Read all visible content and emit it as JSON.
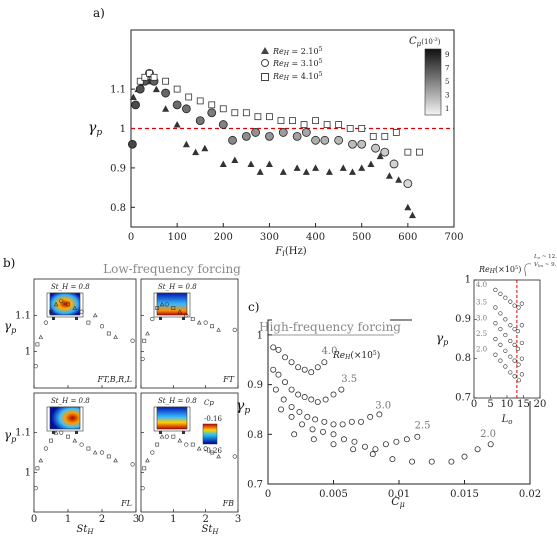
{
  "chart_data": [
    {
      "id": "a",
      "panel_label": "a)",
      "type": "scatter",
      "xlabel": "F_i(Hz)",
      "ylabel": "γ_p",
      "xlim": [
        0,
        700
      ],
      "ylim": [
        0.75,
        1.25
      ],
      "xticks": [
        0,
        100,
        200,
        300,
        400,
        500,
        600,
        700
      ],
      "yticks": [
        0.8,
        0.9,
        1,
        1.1
      ],
      "reference_line": {
        "y": 1,
        "color": "#e00000",
        "style": "dashed"
      },
      "colorbar": {
        "label": "C_μ (10^-3)",
        "ticks": [
          "9",
          "7",
          "5",
          "3",
          "1"
        ]
      },
      "series": [
        {
          "name": "Re_H = 2.10^5",
          "marker": "triangle",
          "x": [
            5,
            15,
            22,
            30,
            40,
            55,
            75,
            100,
            120,
            140,
            160,
            200,
            225,
            260,
            280,
            300,
            330,
            360,
            380,
            400,
            430,
            460,
            480,
            500,
            520,
            540,
            560,
            580,
            600,
            610
          ],
          "y": [
            1.08,
            1.1,
            1.11,
            1.12,
            1.12,
            1.1,
            1.05,
            1.01,
            0.96,
            0.94,
            0.95,
            0.91,
            0.92,
            0.91,
            0.89,
            0.91,
            0.89,
            0.9,
            0.89,
            0.9,
            0.89,
            0.9,
            0.89,
            0.9,
            0.91,
            0.93,
            0.88,
            0.87,
            0.8,
            0.78
          ]
        },
        {
          "name": "Re_H = 3.10^5",
          "marker": "circle",
          "x": [
            3,
            10,
            20,
            30,
            40,
            50,
            75,
            100,
            120,
            150,
            175,
            200,
            220,
            250,
            270,
            300,
            330,
            360,
            380,
            400,
            420,
            450,
            480,
            500,
            530,
            550,
            570,
            600
          ],
          "y": [
            0.96,
            1.06,
            1.1,
            1.12,
            1.14,
            1.12,
            1.09,
            1.06,
            1.05,
            1.02,
            1.04,
            1.01,
            0.97,
            0.98,
            0.99,
            0.98,
            0.99,
            0.98,
            0.99,
            0.97,
            0.97,
            0.97,
            0.96,
            0.96,
            0.95,
            0.94,
            0.91,
            0.86
          ]
        },
        {
          "name": "Re_H = 4.10^5",
          "marker": "square",
          "x": [
            20,
            30,
            40,
            50,
            75,
            100,
            125,
            150,
            175,
            200,
            225,
            250,
            275,
            300,
            325,
            350,
            375,
            400,
            425,
            450,
            475,
            500,
            525,
            550,
            575,
            600,
            625
          ],
          "y": [
            1.12,
            1.13,
            1.14,
            1.13,
            1.12,
            1.1,
            1.08,
            1.07,
            1.06,
            1.05,
            1.04,
            1.04,
            1.03,
            1.03,
            1.02,
            1.02,
            1.01,
            1.02,
            1.01,
            1.01,
            1.0,
            1.0,
            0.98,
            0.98,
            0.99,
            0.94,
            0.94
          ]
        }
      ]
    },
    {
      "id": "b",
      "panel_label": "b)",
      "type": "scatter",
      "title": "Low-frequency forcing",
      "xlabel": "St_H",
      "ylabel": "γ_p",
      "xlim": [
        0,
        3
      ],
      "ylim": [
        0.9,
        1.2
      ],
      "xticks": [
        0,
        1,
        2,
        3
      ],
      "yticks": [
        1,
        1.1
      ],
      "inset_label": "St_H = 0.8",
      "colorbar": {
        "label": "C_p (mean)",
        "ticks": [
          "-0.16",
          "-0.26"
        ]
      },
      "subpanels": [
        {
          "label": "F_{T,B,R,L}",
          "x": [
            0.05,
            0.1,
            0.2,
            0.35,
            0.5,
            0.65,
            0.8,
            1.0,
            1.2,
            1.4,
            1.6,
            1.8,
            2.0,
            2.2,
            2.4,
            2.9
          ],
          "y": [
            0.96,
            1.02,
            1.04,
            1.08,
            1.11,
            1.13,
            1.14,
            1.13,
            1.12,
            1.11,
            1.08,
            1.1,
            1.07,
            1.05,
            1.04,
            1.03
          ]
        },
        {
          "label": "F_T",
          "x": [
            0.05,
            0.1,
            0.2,
            0.35,
            0.5,
            0.65,
            0.8,
            1.0,
            1.2,
            1.4,
            1.6,
            1.8,
            2.0,
            2.2,
            2.4,
            2.9
          ],
          "y": [
            0.98,
            1.03,
            1.05,
            1.09,
            1.12,
            1.13,
            1.13,
            1.12,
            1.11,
            1.1,
            1.09,
            1.08,
            1.08,
            1.07,
            1.06,
            1.06
          ]
        },
        {
          "label": "F_L",
          "x": [
            0.05,
            0.1,
            0.2,
            0.35,
            0.5,
            0.65,
            0.8,
            1.0,
            1.2,
            1.4,
            1.6,
            1.8,
            2.0,
            2.2,
            2.4,
            2.9
          ],
          "y": [
            0.96,
            1.01,
            1.03,
            1.06,
            1.08,
            1.1,
            1.1,
            1.09,
            1.08,
            1.07,
            1.06,
            1.05,
            1.05,
            1.04,
            1.03,
            1.02
          ]
        },
        {
          "label": "F_B",
          "x": [
            0.05,
            0.1,
            0.2,
            0.35,
            0.5,
            0.65,
            0.8,
            1.0,
            1.2,
            1.4,
            1.6,
            1.8,
            2.0,
            2.2,
            2.4,
            2.9
          ],
          "y": [
            0.96,
            1.01,
            1.03,
            1.05,
            1.07,
            1.09,
            1.09,
            1.09,
            1.08,
            1.07,
            1.07,
            1.06,
            1.06,
            1.05,
            1.04,
            1.04
          ]
        }
      ]
    },
    {
      "id": "c",
      "panel_label": "c)",
      "type": "scatter",
      "title": "High-frequency forcing",
      "xlabel": "C_μ",
      "ylabel": "γ_p",
      "xlim": [
        0,
        0.02
      ],
      "ylim": [
        0.7,
        1.03
      ],
      "xticks": [
        0,
        0.005,
        0.01,
        0.015,
        0.02
      ],
      "yticks": [
        0.7,
        0.8,
        0.9,
        1
      ],
      "legend_title": "Re_H (×10^5)",
      "series": [
        {
          "name": "4.0",
          "x": [
            0.0004,
            0.0008,
            0.0013,
            0.0018,
            0.0023,
            0.0028,
            0.0033,
            0.0038,
            0.0043
          ],
          "y": [
            0.975,
            0.97,
            0.955,
            0.945,
            0.935,
            0.93,
            0.925,
            0.935,
            0.945
          ]
        },
        {
          "name": "3.5",
          "x": [
            0.0004,
            0.0008,
            0.0013,
            0.0018,
            0.0023,
            0.0028,
            0.0033,
            0.0038,
            0.0044,
            0.005,
            0.0056
          ],
          "y": [
            0.93,
            0.92,
            0.905,
            0.89,
            0.88,
            0.875,
            0.87,
            0.865,
            0.87,
            0.88,
            0.89
          ]
        },
        {
          "name": "3.0",
          "x": [
            0.0006,
            0.0012,
            0.0018,
            0.0024,
            0.003,
            0.0036,
            0.0043,
            0.005,
            0.0057,
            0.0064,
            0.0071,
            0.0078,
            0.0085
          ],
          "y": [
            0.89,
            0.87,
            0.855,
            0.845,
            0.835,
            0.83,
            0.825,
            0.82,
            0.82,
            0.825,
            0.825,
            0.835,
            0.84
          ]
        },
        {
          "name": "2.5",
          "x": [
            0.001,
            0.0018,
            0.0026,
            0.0034,
            0.0042,
            0.005,
            0.0058,
            0.0066,
            0.0074,
            0.0082,
            0.009,
            0.0098,
            0.0106,
            0.0114
          ],
          "y": [
            0.85,
            0.835,
            0.82,
            0.81,
            0.805,
            0.8,
            0.79,
            0.785,
            0.775,
            0.77,
            0.78,
            0.785,
            0.79,
            0.795
          ]
        },
        {
          "name": "2.0",
          "x": [
            0.002,
            0.0035,
            0.005,
            0.0065,
            0.008,
            0.0095,
            0.011,
            0.0125,
            0.014,
            0.015,
            0.016,
            0.017
          ],
          "y": [
            0.8,
            0.79,
            0.78,
            0.77,
            0.76,
            0.75,
            0.745,
            0.745,
            0.745,
            0.755,
            0.77,
            0.78
          ]
        }
      ],
      "inset": {
        "xlabel": "L_o",
        "ylabel": "γ_p",
        "legend_title": "Re_H (×10^5)",
        "xlim": [
          0,
          20
        ],
        "ylim": [
          0.7,
          1.0
        ],
        "xticks": [
          0,
          5,
          10,
          15,
          20
        ],
        "yticks": [
          0.7,
          0.8,
          0.9,
          1
        ],
        "annotation": [
          "L_o ~ 12.8",
          "V_lm ~ 9.1 m s^-1"
        ],
        "vline": 13,
        "series": [
          {
            "name": "4.0",
            "x": [
              6.5,
              8,
              9.5,
              11,
              12.3,
              13.5,
              14.5
            ],
            "y": [
              0.975,
              0.965,
              0.955,
              0.945,
              0.935,
              0.93,
              0.94
            ]
          },
          {
            "name": "3.5",
            "x": [
              6.5,
              8,
              9.5,
              11,
              12.3,
              13.3,
              14.5
            ],
            "y": [
              0.93,
              0.915,
              0.9,
              0.885,
              0.875,
              0.87,
              0.885
            ]
          },
          {
            "name": "3.0",
            "x": [
              6.5,
              8,
              9.5,
              11,
              12.3,
              13.3,
              14.5
            ],
            "y": [
              0.89,
              0.875,
              0.86,
              0.845,
              0.835,
              0.825,
              0.84
            ]
          },
          {
            "name": "2.5",
            "x": [
              6.5,
              8,
              9.5,
              11,
              12.3,
              13.5,
              14.5
            ],
            "y": [
              0.85,
              0.835,
              0.82,
              0.805,
              0.795,
              0.785,
              0.8
            ]
          },
          {
            "name": "2.0",
            "x": [
              6.5,
              8,
              9.5,
              11,
              12.3,
              13.6,
              14.5
            ],
            "y": [
              0.81,
              0.795,
              0.78,
              0.765,
              0.755,
              0.745,
              0.76
            ]
          }
        ]
      }
    }
  ]
}
